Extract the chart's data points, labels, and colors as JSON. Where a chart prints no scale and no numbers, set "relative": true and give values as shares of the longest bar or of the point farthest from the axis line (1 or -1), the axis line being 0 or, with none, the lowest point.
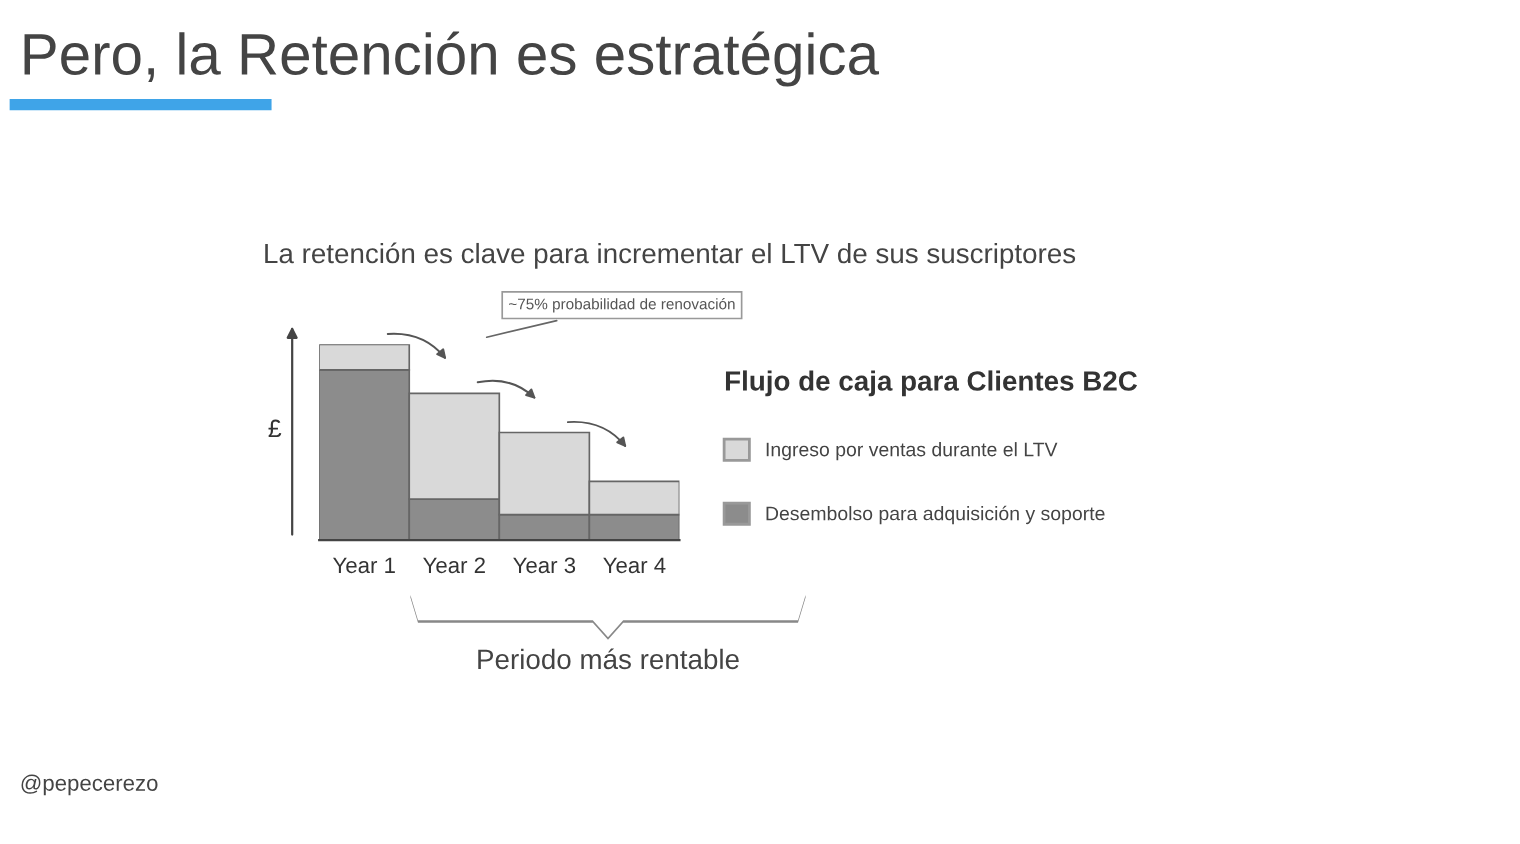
{
  "chart_data": {
    "type": "bar",
    "stacked": true,
    "relative": true,
    "title": "Pero, la Retención es estratégica",
    "subtitle": "La retención es clave para incrementar el LTV de sus suscriptores",
    "ylabel": "£",
    "legend_title": "Flujo de caja para Clientes B2C",
    "legend": "right",
    "categories": [
      "Year 1",
      "Year 2",
      "Year 3",
      "Year 4"
    ],
    "series": [
      {
        "name": "Desembolso para adquisición y soporte",
        "color": "#8c8c8c",
        "values": [
          0.87,
          0.21,
          0.13,
          0.13
        ]
      },
      {
        "name": "Ingreso por ventas durante el LTV",
        "color": "#d9d9d9",
        "values": [
          0.13,
          0.54,
          0.42,
          0.17
        ]
      }
    ],
    "annotations": [
      "~75% probabilidad de renovación",
      "Periodo más rentable",
      "@pepecerezo"
    ]
  }
}
